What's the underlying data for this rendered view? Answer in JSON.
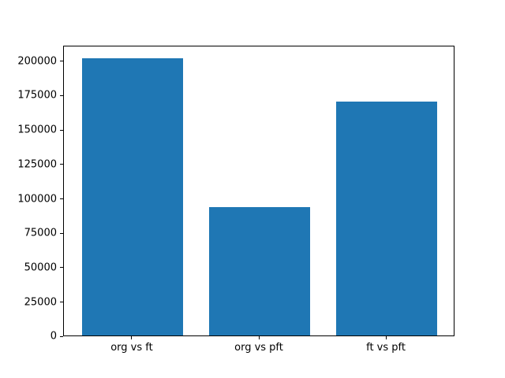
{
  "figure": {
    "background": "#ffffff",
    "title": ""
  },
  "chart_data": {
    "type": "bar",
    "title": "",
    "xlabel": "",
    "ylabel": "",
    "categories": [
      "org vs ft",
      "org vs pft",
      "ft vs pft"
    ],
    "values": [
      201500,
      93500,
      170000
    ],
    "ylim": [
      0,
      211575
    ],
    "xlim": [
      -0.54,
      2.54
    ],
    "yticks": [
      0,
      25000,
      50000,
      75000,
      100000,
      125000,
      150000,
      175000,
      200000
    ],
    "ytick_labels": [
      "0",
      "25000",
      "50000",
      "75000",
      "100000",
      "125000",
      "150000",
      "175000",
      "200000"
    ],
    "bar_color": "#1f77b4",
    "bar_width": 0.8,
    "axis_color": "#000000",
    "grid": false,
    "legend": null
  }
}
